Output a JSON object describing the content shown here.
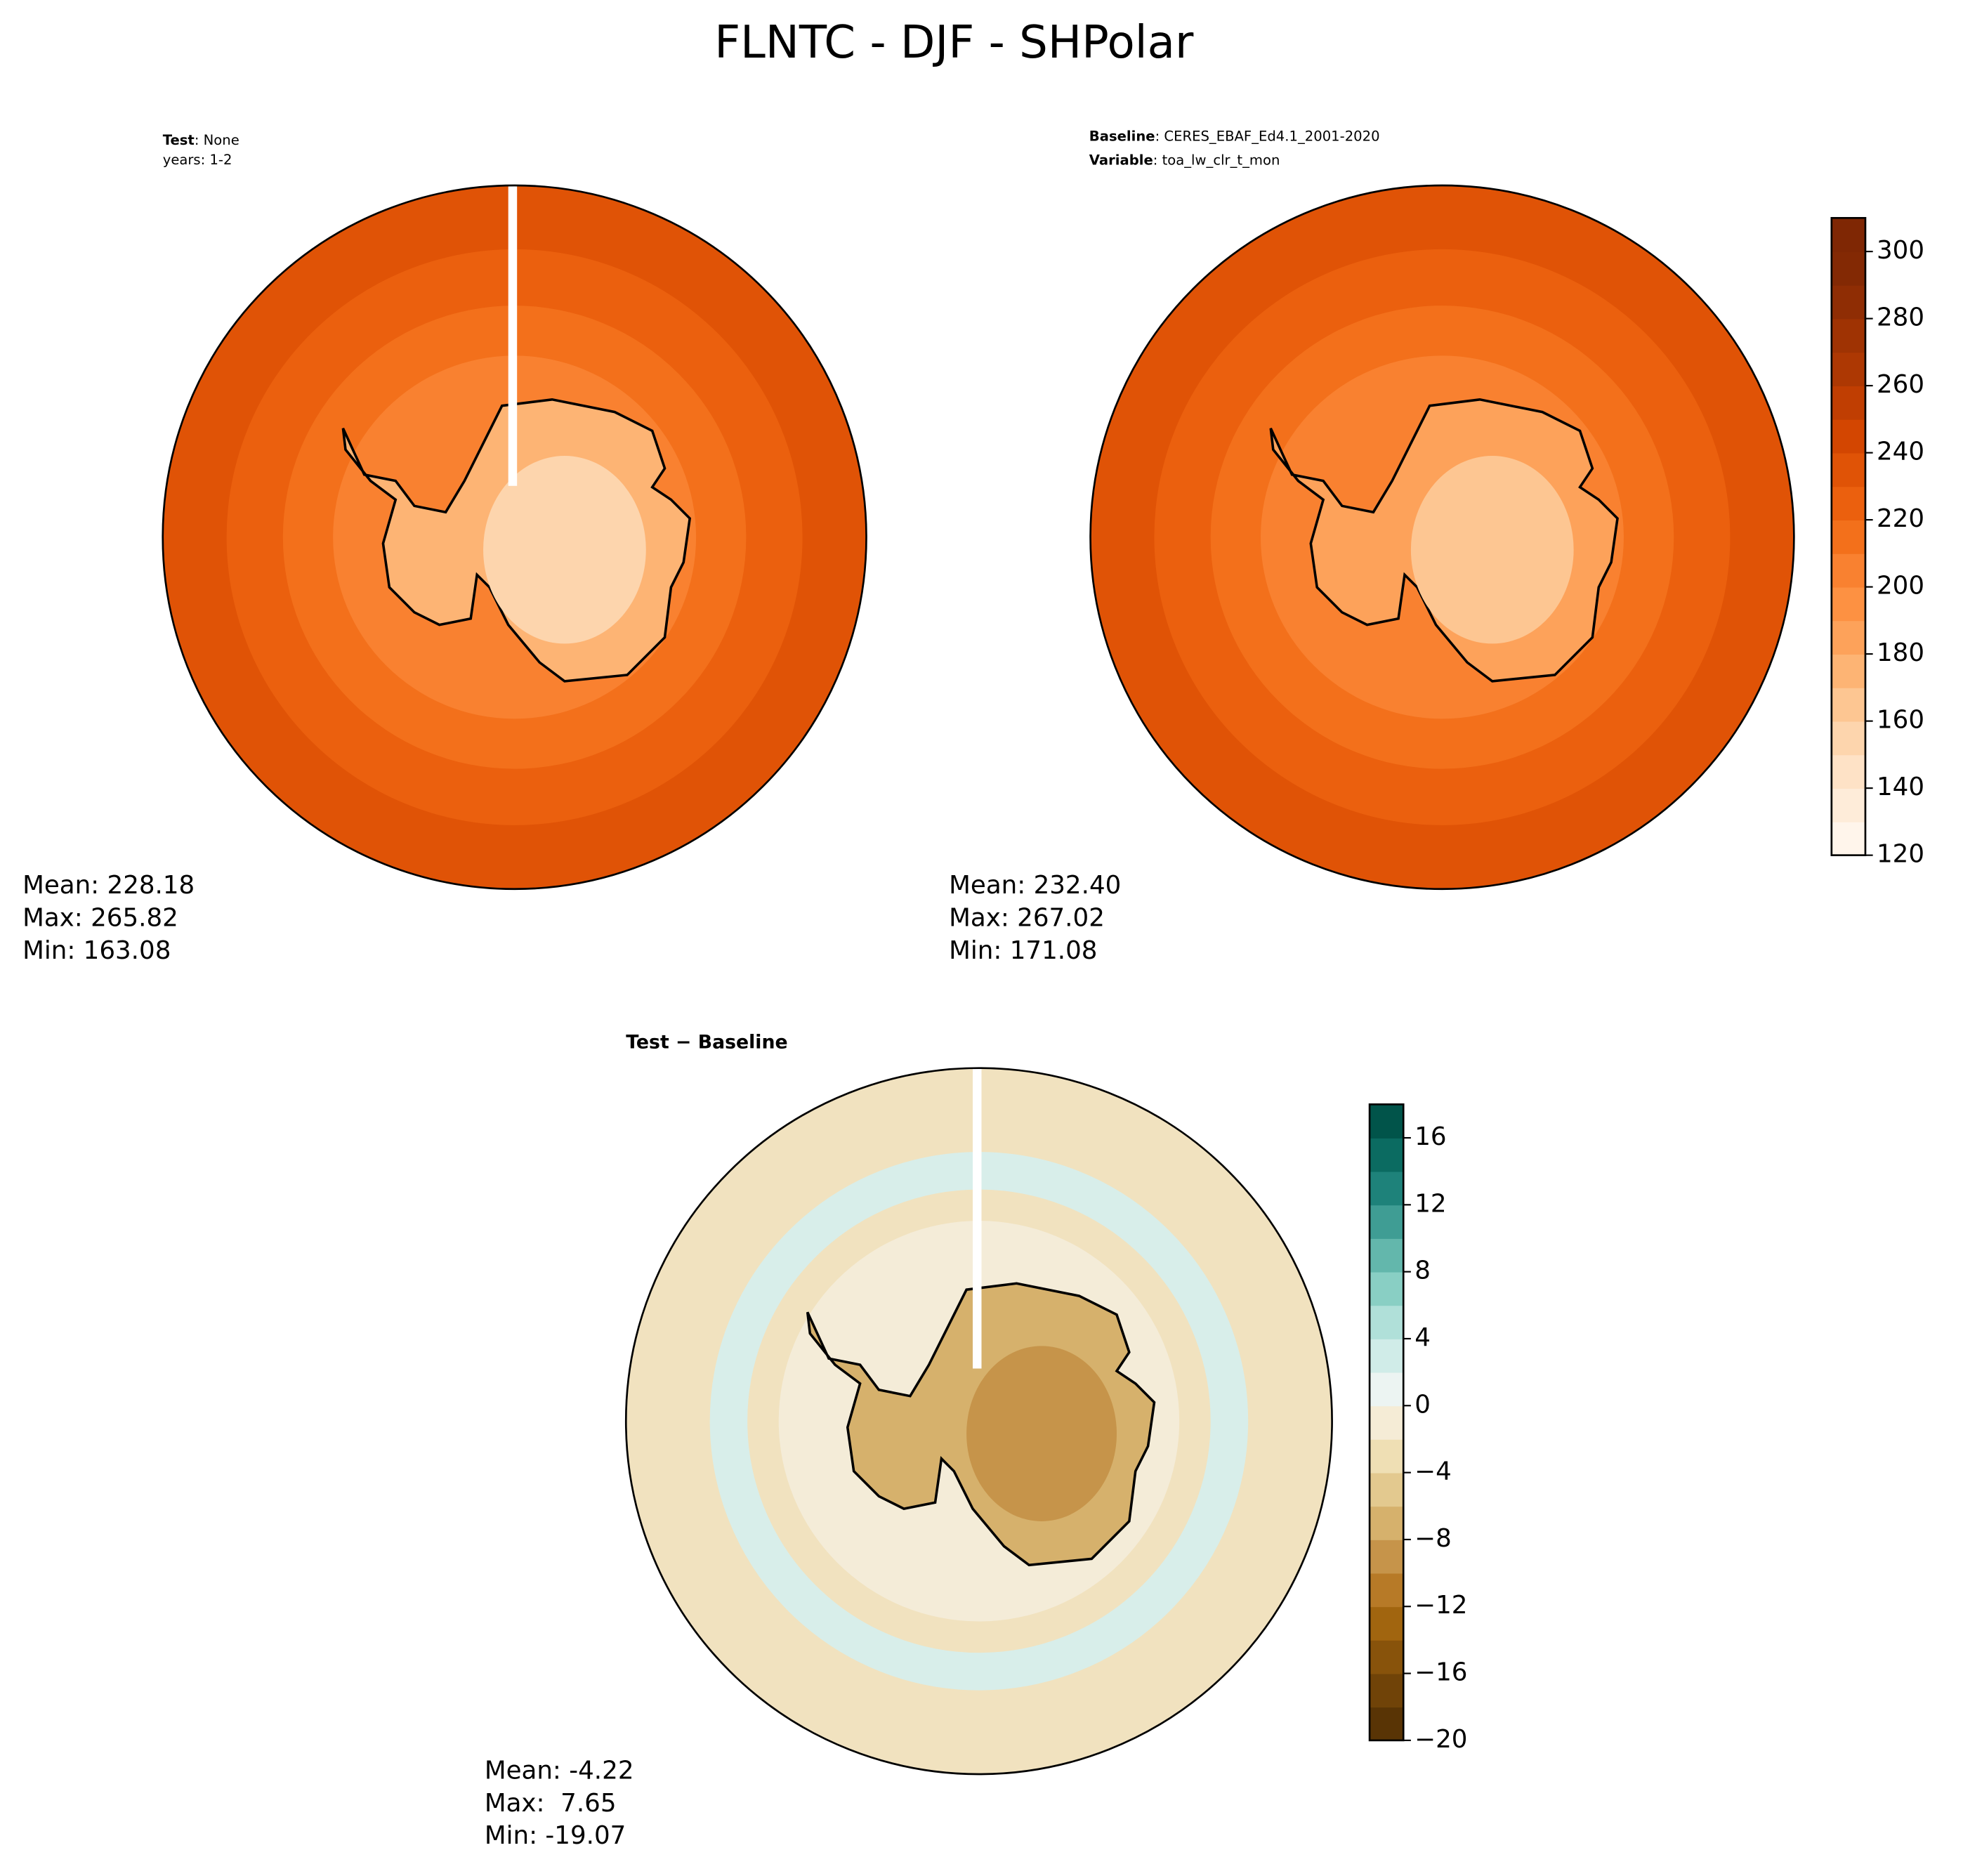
{
  "title": "FLNTC - DJF - SHPolar",
  "panels": [
    {
      "label_key": "Test",
      "label_text": ": None",
      "label_line2": "years: 1-2",
      "stats": [
        "Mean: 228.18",
        "Max: 265.82",
        "Min: 163.08"
      ]
    },
    {
      "label_key": "Baseline",
      "label_text": ": CERES_EBAF_Ed4.1_2001-2020",
      "label_key2": "Variable",
      "label_text2": ": toa_lw_clr_t_mon",
      "stats": [
        "Mean: 232.40",
        "Max: 267.02",
        "Min: 171.08"
      ]
    },
    {
      "label_key": "Test − Baseline",
      "stats": [
        "Mean: -4.22",
        "Max:  7.65",
        "Min: -19.07"
      ]
    }
  ],
  "colorbars": [
    {
      "lim": [
        120,
        310
      ],
      "ticks": [
        120,
        140,
        160,
        180,
        200,
        220,
        240,
        260,
        280,
        300
      ],
      "colors": [
        "#fff5eb",
        "#feecd9",
        "#fee2c6",
        "#fdd5ad",
        "#fdc692",
        "#fdb474",
        "#fda25a",
        "#fd9142",
        "#f98130",
        "#f3701b",
        "#eb600e",
        "#e05306",
        "#d34601",
        "#c03e02",
        "#ad3803",
        "#9f3303",
        "#8f2d04",
        "#832904",
        "#7f2704"
      ]
    },
    {
      "lim": [
        -20,
        18
      ],
      "ticks": [
        {
          "value": -20,
          "label": "−20"
        },
        {
          "value": -16,
          "label": "−16"
        },
        {
          "value": -12,
          "label": "−12"
        },
        {
          "value": -8,
          "label": "−8"
        },
        {
          "value": -4,
          "label": "−4"
        },
        0,
        4,
        8,
        12,
        16
      ],
      "colors": [
        "#593405",
        "#704308",
        "#88530b",
        "#a1650f",
        "#b77a27",
        "#c6944a",
        "#d6b16c",
        "#e3c98f",
        "#efdfb4",
        "#f5ecd6",
        "#ecf4f2",
        "#d0ece8",
        "#b0e0d9",
        "#89cfc4",
        "#63b7ac",
        "#3f9d94",
        "#1e827a",
        "#0b6b61",
        "#01544a"
      ]
    }
  ]
}
